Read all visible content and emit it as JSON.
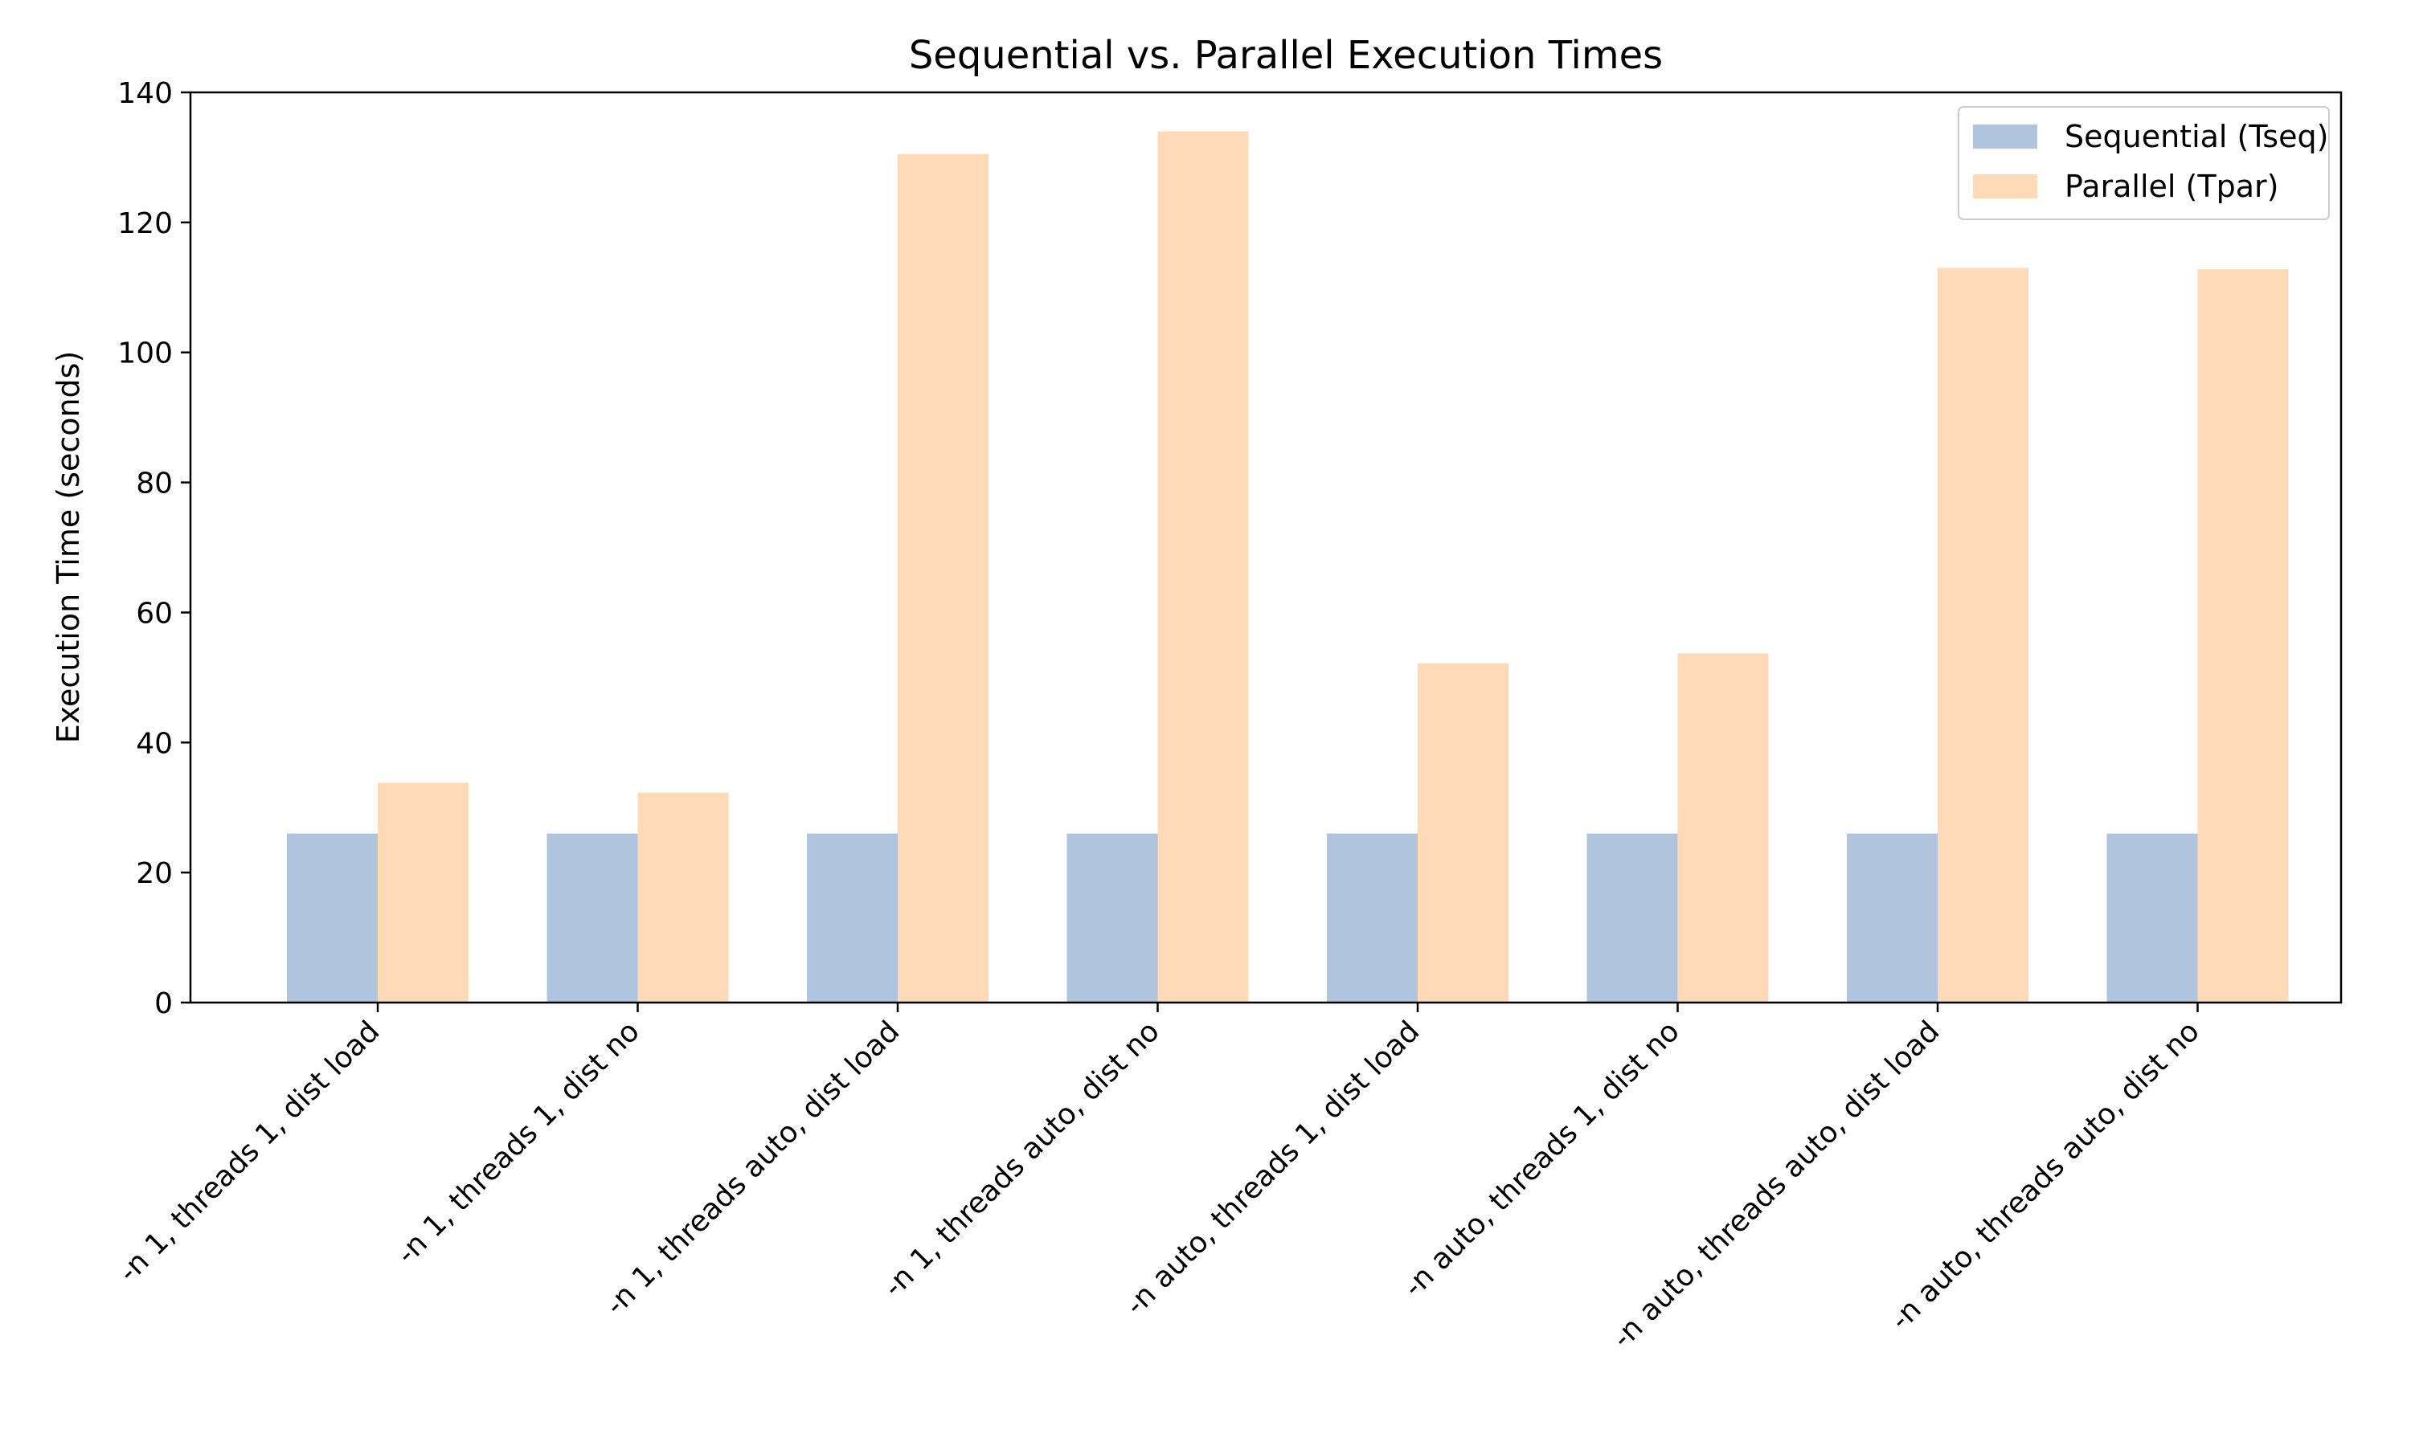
{
  "chart_data": {
    "type": "bar",
    "title": "Sequential vs. Parallel Execution Times",
    "xlabel": "",
    "ylabel": "Execution Time (seconds)",
    "ylim": [
      0,
      140
    ],
    "yticks": [
      0,
      20,
      40,
      60,
      80,
      100,
      120,
      140
    ],
    "grid": false,
    "legend_position": "top-right",
    "categories": [
      "-n 1, threads 1, dist load",
      "-n 1, threads 1, dist no",
      "-n 1, threads auto, dist load",
      "-n 1, threads auto, dist no",
      "-n auto, threads 1, dist load",
      "-n auto, threads 1, dist no",
      "-n auto, threads auto, dist load",
      "-n auto, threads auto, dist no"
    ],
    "series": [
      {
        "name": "Sequential (Tseq)",
        "color": "#b0c4de",
        "values": [
          26,
          26,
          26,
          26,
          26,
          26,
          26,
          26
        ]
      },
      {
        "name": "Parallel (Tpar)",
        "color": "#ffdab9",
        "values": [
          33.8,
          32.3,
          130.5,
          134,
          52.2,
          53.7,
          113,
          112.8
        ]
      }
    ]
  }
}
